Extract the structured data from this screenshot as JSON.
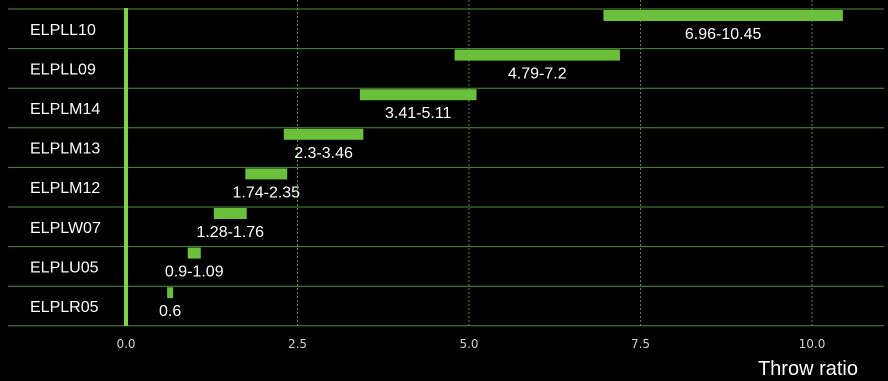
{
  "chart_data": {
    "type": "bar",
    "subtype": "floating-range-horizontal",
    "title": "",
    "xlabel": "Throw ratio",
    "ylabel": "",
    "xlim": [
      0,
      10.5
    ],
    "xticks": [
      {
        "value": 0,
        "label": "0.0"
      },
      {
        "value": 2.5,
        "label": "2.5"
      },
      {
        "value": 5,
        "label": "5.0"
      },
      {
        "value": 7.5,
        "label": "7.5"
      },
      {
        "value": 10,
        "label": "10.0"
      }
    ],
    "grid": {
      "vertical": "dotted",
      "horizontal": "solid"
    },
    "categories": [
      "ELPLL10",
      "ELPLL09",
      "ELPLM14",
      "ELPLM13",
      "ELPLM12",
      "ELPLW07",
      "ELPLU05",
      "ELPLR05"
    ],
    "ranges": [
      {
        "category": "ELPLL10",
        "min": 6.96,
        "max": 10.45,
        "label": "6.96-10.45"
      },
      {
        "category": "ELPLL09",
        "min": 4.79,
        "max": 7.2,
        "label": "4.79-7.2"
      },
      {
        "category": "ELPLM14",
        "min": 3.41,
        "max": 5.11,
        "label": "3.41-5.11"
      },
      {
        "category": "ELPLM13",
        "min": 2.3,
        "max": 3.46,
        "label": "2.3-3.46"
      },
      {
        "category": "ELPLM12",
        "min": 1.74,
        "max": 2.35,
        "label": "1.74-2.35"
      },
      {
        "category": "ELPLW07",
        "min": 1.28,
        "max": 1.76,
        "label": "1.28-1.76"
      },
      {
        "category": "ELPLU05",
        "min": 0.9,
        "max": 1.09,
        "label": "0.9-1.09"
      },
      {
        "category": "ELPLR05",
        "min": 0.6,
        "max": 0.6,
        "label": "0.6"
      }
    ]
  },
  "colors": {
    "background": "#000000",
    "bar": "#6abf3b",
    "gridline": "#4e8f3a",
    "zero_axis": "#7ed348",
    "text": "#ffffff",
    "tick_text": "#cfcfcf"
  }
}
